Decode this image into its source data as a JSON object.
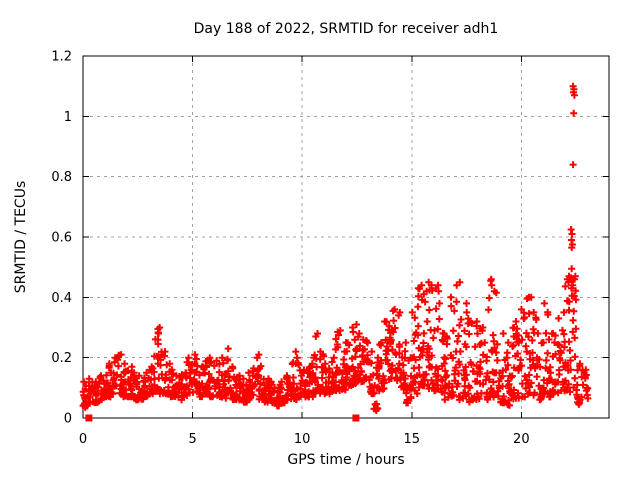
{
  "chart_data": {
    "type": "scatter",
    "title": "Day 188 of 2022, SRMTID for receiver adh1",
    "xlabel": "GPS time / hours",
    "ylabel": "SRMTID / TECUs",
    "xlim": [
      0,
      24
    ],
    "ylim": [
      0,
      1.2
    ],
    "xticks": [
      0,
      5,
      10,
      15,
      20
    ],
    "xtick_labels": [
      "0",
      "5",
      "10",
      "15",
      "20"
    ],
    "yticks": [
      0,
      0.2,
      0.4,
      0.6,
      0.8,
      1.0,
      1.2
    ],
    "ytick_labels": [
      "0",
      "0.2",
      "0.4",
      "0.6",
      "0.8",
      "1",
      "1.2"
    ],
    "grid": true,
    "legend": "none",
    "marker": "plus",
    "bands_format": "[start_hour, end_hour, y_min, y_max, approx_point_count] read from the dense scatter cloud",
    "bands": [
      [
        0.0,
        0.25,
        0.04,
        0.12,
        14
      ],
      [
        0.25,
        0.5,
        0.05,
        0.13,
        14
      ],
      [
        0.5,
        0.75,
        0.05,
        0.12,
        14
      ],
      [
        0.75,
        1.0,
        0.06,
        0.14,
        14
      ],
      [
        1.0,
        1.25,
        0.07,
        0.18,
        14
      ],
      [
        1.25,
        1.5,
        0.08,
        0.2,
        14
      ],
      [
        1.5,
        1.75,
        0.08,
        0.21,
        14
      ],
      [
        1.75,
        2.0,
        0.07,
        0.18,
        14
      ],
      [
        2.0,
        2.25,
        0.07,
        0.17,
        14
      ],
      [
        2.25,
        2.5,
        0.06,
        0.15,
        14
      ],
      [
        2.5,
        2.75,
        0.06,
        0.14,
        14
      ],
      [
        2.75,
        3.0,
        0.07,
        0.15,
        14
      ],
      [
        3.0,
        3.25,
        0.08,
        0.17,
        14
      ],
      [
        3.25,
        3.5,
        0.08,
        0.3,
        16
      ],
      [
        3.5,
        3.75,
        0.08,
        0.22,
        14
      ],
      [
        3.75,
        4.0,
        0.08,
        0.18,
        14
      ],
      [
        4.0,
        4.25,
        0.07,
        0.16,
        14
      ],
      [
        4.25,
        4.5,
        0.06,
        0.14,
        14
      ],
      [
        4.5,
        4.75,
        0.07,
        0.15,
        14
      ],
      [
        4.75,
        5.0,
        0.08,
        0.2,
        14
      ],
      [
        5.0,
        5.25,
        0.08,
        0.21,
        14
      ],
      [
        5.25,
        5.5,
        0.07,
        0.17,
        14
      ],
      [
        5.5,
        5.75,
        0.08,
        0.19,
        14
      ],
      [
        5.75,
        6.0,
        0.07,
        0.2,
        14
      ],
      [
        6.0,
        6.25,
        0.07,
        0.19,
        14
      ],
      [
        6.25,
        6.5,
        0.06,
        0.2,
        14
      ],
      [
        6.5,
        6.75,
        0.06,
        0.23,
        14
      ],
      [
        6.75,
        7.0,
        0.06,
        0.17,
        14
      ],
      [
        7.0,
        7.25,
        0.06,
        0.14,
        14
      ],
      [
        7.25,
        7.5,
        0.05,
        0.13,
        14
      ],
      [
        7.5,
        7.75,
        0.06,
        0.15,
        14
      ],
      [
        7.75,
        8.0,
        0.07,
        0.2,
        14
      ],
      [
        8.0,
        8.25,
        0.06,
        0.21,
        14
      ],
      [
        8.25,
        8.5,
        0.05,
        0.13,
        14
      ],
      [
        8.5,
        8.75,
        0.05,
        0.12,
        14
      ],
      [
        8.75,
        9.0,
        0.04,
        0.11,
        14
      ],
      [
        9.0,
        9.25,
        0.05,
        0.12,
        14
      ],
      [
        9.25,
        9.5,
        0.06,
        0.14,
        14
      ],
      [
        9.5,
        9.75,
        0.06,
        0.22,
        14
      ],
      [
        9.75,
        10.0,
        0.07,
        0.2,
        14
      ],
      [
        10.0,
        10.25,
        0.07,
        0.16,
        14
      ],
      [
        10.25,
        10.5,
        0.07,
        0.18,
        14
      ],
      [
        10.5,
        10.75,
        0.08,
        0.28,
        16
      ],
      [
        10.75,
        11.0,
        0.08,
        0.22,
        14
      ],
      [
        11.0,
        11.25,
        0.08,
        0.18,
        14
      ],
      [
        11.25,
        11.5,
        0.09,
        0.2,
        14
      ],
      [
        11.5,
        11.75,
        0.09,
        0.29,
        16
      ],
      [
        11.75,
        12.0,
        0.09,
        0.22,
        14
      ],
      [
        12.0,
        12.25,
        0.1,
        0.25,
        14
      ],
      [
        12.25,
        12.5,
        0.11,
        0.31,
        16
      ],
      [
        12.5,
        12.75,
        0.12,
        0.28,
        14
      ],
      [
        12.75,
        13.0,
        0.12,
        0.26,
        14
      ],
      [
        13.0,
        13.25,
        0.08,
        0.22,
        14
      ],
      [
        13.25,
        13.5,
        0.03,
        0.2,
        14
      ],
      [
        13.5,
        13.75,
        0.09,
        0.25,
        14
      ],
      [
        13.75,
        14.0,
        0.12,
        0.32,
        14
      ],
      [
        14.0,
        14.25,
        0.13,
        0.36,
        16
      ],
      [
        14.25,
        14.5,
        0.12,
        0.35,
        14
      ],
      [
        14.5,
        14.75,
        0.08,
        0.25,
        14
      ],
      [
        14.75,
        15.0,
        0.05,
        0.2,
        14
      ],
      [
        15.0,
        15.25,
        0.08,
        0.35,
        16
      ],
      [
        15.25,
        15.5,
        0.1,
        0.44,
        16
      ],
      [
        15.5,
        15.75,
        0.1,
        0.42,
        16
      ],
      [
        15.75,
        16.0,
        0.08,
        0.45,
        16
      ],
      [
        16.0,
        16.25,
        0.09,
        0.44,
        16
      ],
      [
        16.25,
        16.5,
        0.08,
        0.38,
        14
      ],
      [
        16.5,
        16.75,
        0.06,
        0.27,
        14
      ],
      [
        16.75,
        17.0,
        0.07,
        0.4,
        14
      ],
      [
        17.0,
        17.25,
        0.06,
        0.45,
        16
      ],
      [
        17.25,
        17.5,
        0.06,
        0.38,
        14
      ],
      [
        17.5,
        17.75,
        0.05,
        0.35,
        14
      ],
      [
        17.75,
        18.0,
        0.06,
        0.32,
        14
      ],
      [
        18.0,
        18.25,
        0.05,
        0.3,
        14
      ],
      [
        18.25,
        18.5,
        0.06,
        0.25,
        14
      ],
      [
        18.5,
        18.75,
        0.06,
        0.46,
        16
      ],
      [
        18.75,
        19.0,
        0.07,
        0.42,
        14
      ],
      [
        19.0,
        19.25,
        0.05,
        0.28,
        14
      ],
      [
        19.25,
        19.5,
        0.04,
        0.25,
        14
      ],
      [
        19.5,
        19.75,
        0.06,
        0.3,
        14
      ],
      [
        19.75,
        20.0,
        0.06,
        0.32,
        14
      ],
      [
        20.0,
        20.25,
        0.07,
        0.36,
        14
      ],
      [
        20.25,
        20.5,
        0.08,
        0.4,
        14
      ],
      [
        20.5,
        20.75,
        0.07,
        0.35,
        14
      ],
      [
        20.75,
        21.0,
        0.06,
        0.28,
        14
      ],
      [
        21.0,
        21.25,
        0.08,
        0.38,
        14
      ],
      [
        21.25,
        21.5,
        0.07,
        0.28,
        14
      ],
      [
        21.5,
        21.75,
        0.08,
        0.33,
        14
      ],
      [
        21.75,
        22.0,
        0.09,
        0.35,
        14
      ],
      [
        22.0,
        22.25,
        0.08,
        0.47,
        16
      ],
      [
        22.25,
        22.5,
        0.1,
        0.47,
        14
      ],
      [
        22.5,
        22.75,
        0.05,
        0.18,
        12
      ],
      [
        22.75,
        23.05,
        0.06,
        0.16,
        12
      ]
    ],
    "outlier_points": [
      [
        22.36,
        1.1
      ],
      [
        22.4,
        1.09
      ],
      [
        22.38,
        1.08
      ],
      [
        22.42,
        1.07
      ],
      [
        22.39,
        1.01
      ],
      [
        22.36,
        0.84
      ],
      [
        22.27,
        0.625
      ],
      [
        22.31,
        0.61
      ],
      [
        22.29,
        0.59
      ],
      [
        22.33,
        0.575
      ],
      [
        22.3,
        0.565
      ],
      [
        22.3,
        0.495
      ],
      [
        22.27,
        0.465
      ],
      [
        22.32,
        0.455
      ],
      [
        22.35,
        0.44
      ],
      [
        22.29,
        0.43
      ],
      [
        22.31,
        0.405
      ],
      [
        3.42,
        0.295
      ],
      [
        3.45,
        0.28
      ],
      [
        3.42,
        0.26
      ],
      [
        10.62,
        0.27
      ],
      [
        11.62,
        0.285
      ],
      [
        12.3,
        0.3
      ],
      [
        12.33,
        0.285
      ],
      [
        14.15,
        0.355
      ],
      [
        14.4,
        0.34
      ],
      [
        15.3,
        0.43
      ],
      [
        15.55,
        0.41
      ],
      [
        15.9,
        0.44
      ],
      [
        16.1,
        0.43
      ],
      [
        17.05,
        0.44
      ],
      [
        18.6,
        0.455
      ],
      [
        18.65,
        0.44
      ],
      [
        20.35,
        0.4
      ],
      [
        22.1,
        0.46
      ],
      [
        22.15,
        0.45
      ],
      [
        13.28,
        0.03
      ],
      [
        13.33,
        0.045
      ],
      [
        13.38,
        0.025
      ],
      [
        14.82,
        0.05
      ],
      [
        8.92,
        0.04
      ],
      [
        22.62,
        0.045
      ],
      [
        0.1,
        0.035
      ]
    ],
    "zero_markers": [
      [
        0.27,
        0
      ],
      [
        12.45,
        0
      ]
    ]
  },
  "colors": {
    "marker": "#ff0000",
    "grid": "#a0a0a0",
    "frame": "#000000",
    "background": "#ffffff",
    "text": "#000000"
  }
}
